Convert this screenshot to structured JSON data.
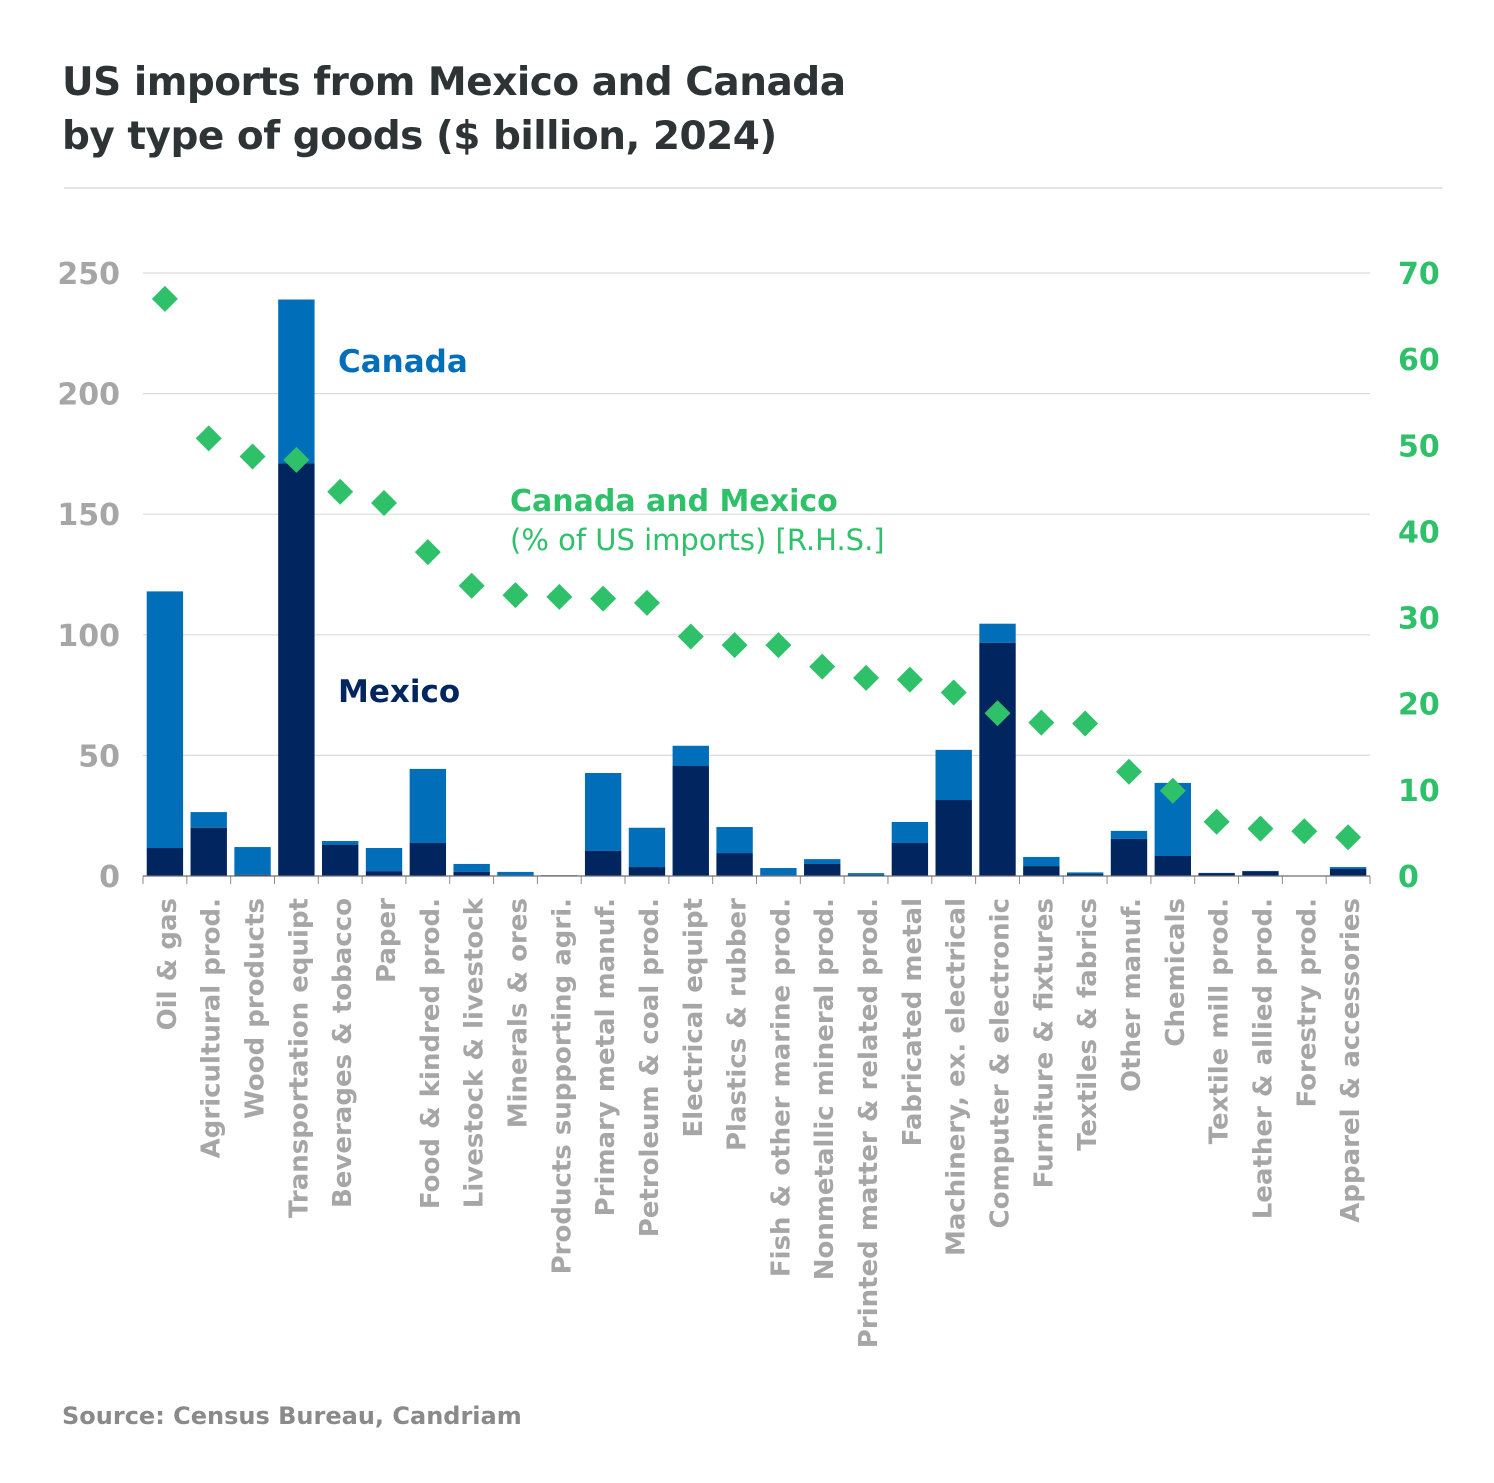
{
  "header": {
    "title_line1": "US imports from Mexico and Canada",
    "title_line2": "by type of goods ($ billion, 2024)"
  },
  "footer": {
    "source": "Source: Census Bureau, Candriam"
  },
  "colors": {
    "canada": "#006eb8",
    "mexico": "#00255f",
    "share": "#2fc16a",
    "axis_text": "#a6a6a6",
    "grid": "#dcdcdc",
    "title": "#2e3336"
  },
  "chart_data": {
    "type": "bar",
    "stacked": true,
    "title": "US imports from Mexico and Canada by type of goods ($ billion, 2024)",
    "xlabel": "",
    "ylabel": "$ billion",
    "ylim": [
      0,
      250
    ],
    "yticks": [
      0,
      50,
      100,
      150,
      200,
      250
    ],
    "y2label": "% of US imports",
    "y2lim": [
      0,
      70
    ],
    "y2ticks": [
      0,
      10,
      20,
      30,
      40,
      50,
      60,
      70
    ],
    "grid": true,
    "categories": [
      "Oil & gas",
      "Agricultural prod.",
      "Wood products",
      "Transportation equipt",
      "Beverages & tobacco",
      "Paper",
      "Food & kindred prod.",
      "Livestock & livestock",
      "Minerals & ores",
      "Products supporting agri.",
      "Primary metal manuf.",
      "Petroleum & coal prod.",
      "Electrical equipt",
      "Plastics & rubber",
      "Fish & other marine prod.",
      "Nonmetallic mineral prod.",
      "Printed matter & related prod.",
      "Fabricated metal",
      "Machinery, ex. electrical",
      "Computer & electronic",
      "Furniture & fixtures",
      "Textiles & fabrics",
      "Other manuf.",
      "Chemicals",
      "Textile mill prod.",
      "Leather & allied prod.",
      "Forestry prod.",
      "Apparel & accessories"
    ],
    "series": [
      {
        "name": "Mexico",
        "type": "bar",
        "axis": "left",
        "values": [
          11.6,
          20,
          0.5,
          171,
          13,
          2,
          13.7,
          1.7,
          0.2,
          0.3,
          10.4,
          3.7,
          45.6,
          9.5,
          0.3,
          5,
          0.5,
          13.7,
          31.5,
          96.7,
          4.1,
          0.8,
          15.4,
          8.3,
          1.2,
          2,
          0.2,
          2.9
        ]
      },
      {
        "name": "Canada",
        "type": "bar",
        "axis": "left",
        "values": [
          106.4,
          6.5,
          11.5,
          68,
          1.5,
          9.6,
          30.7,
          3.3,
          1.5,
          0,
          32.3,
          16.3,
          8.4,
          10.8,
          3,
          2,
          0.7,
          8.7,
          20.8,
          7.9,
          3.8,
          0.7,
          3.3,
          30.3,
          0.1,
          0.1,
          0,
          0.8
        ]
      },
      {
        "name": "Canada and Mexico (% of US imports) [R.H.S.]",
        "type": "scatter",
        "marker": "diamond",
        "axis": "right",
        "values": [
          67,
          50.8,
          48.7,
          48.3,
          44.6,
          43.3,
          37.6,
          33.7,
          32.6,
          32.4,
          32.2,
          31.7,
          27.8,
          26.8,
          26.8,
          24.3,
          23,
          22.8,
          21.3,
          18.9,
          17.8,
          17.7,
          12.1,
          9.9,
          6.3,
          5.5,
          5.2,
          4.5
        ]
      }
    ],
    "annotations": [
      {
        "text": "Canada",
        "series": "Canada"
      },
      {
        "text": "Mexico",
        "series": "Mexico"
      },
      {
        "text": "Canada and Mexico",
        "series": "share"
      },
      {
        "text": "(% of US imports) [R.H.S.]",
        "series": "share"
      }
    ],
    "legend": "inline annotations"
  }
}
